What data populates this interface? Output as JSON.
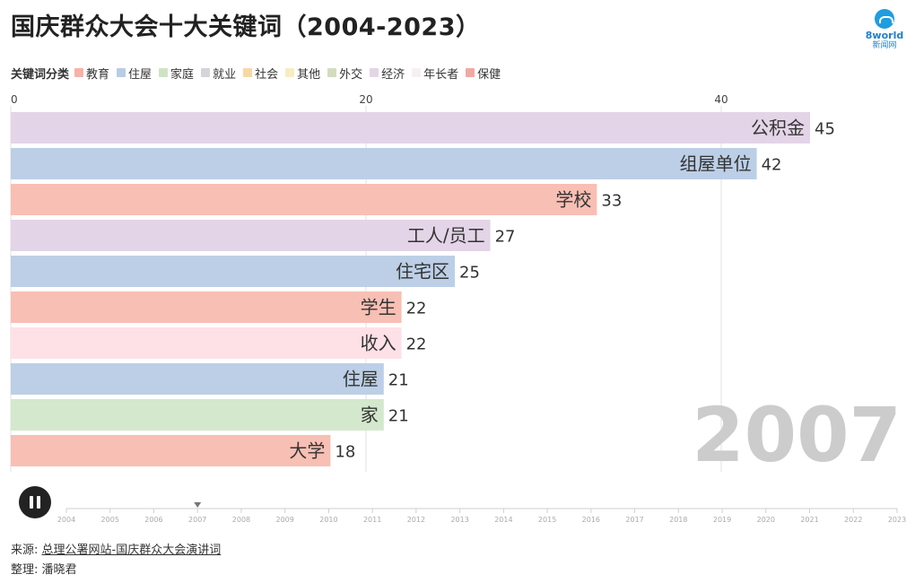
{
  "title": "国庆群众大会十大关键词（2004-2023）",
  "logo": {
    "brand": "8world",
    "subbrand": "新闻网"
  },
  "legend": {
    "title": "关键词分类",
    "items": [
      {
        "label": "教育",
        "color": "#f7b1a8"
      },
      {
        "label": "住屋",
        "color": "#b8cce4"
      },
      {
        "label": "家庭",
        "color": "#cfe3c4"
      },
      {
        "label": "就业",
        "color": "#d5d5d9"
      },
      {
        "label": "社会",
        "color": "#f8d7a6"
      },
      {
        "label": "其他",
        "color": "#f7ecc2"
      },
      {
        "label": "外交",
        "color": "#d4dcc0"
      },
      {
        "label": "经济",
        "color": "#e5d4e6"
      },
      {
        "label": "年长者",
        "color": "#f6f0f2"
      },
      {
        "label": "保健",
        "color": "#f1a9a4"
      }
    ]
  },
  "chart_data": {
    "type": "bar",
    "orientation": "horizontal",
    "year": "2007",
    "xlim": [
      0,
      45
    ],
    "ticks": [
      0,
      20,
      40
    ],
    "categories": [
      "公积金",
      "组屋单位",
      "学校",
      "工人/员工",
      "住宅区",
      "学生",
      "收入",
      "住屋",
      "家",
      "大学"
    ],
    "values": [
      45,
      42,
      33,
      27,
      25,
      22,
      22,
      21,
      21,
      18
    ],
    "category_groups": [
      "经济",
      "住屋",
      "教育",
      "经济",
      "住屋",
      "教育",
      "年长者",
      "住屋",
      "家庭",
      "教育"
    ],
    "colors": [
      "#e4d4e7",
      "#bccfe6",
      "#f8bfb4",
      "#e4d4e7",
      "#bccfe6",
      "#f8bfb4",
      "#fde1e6",
      "#bccfe6",
      "#d3e8cc",
      "#f8bfb4"
    ]
  },
  "timeline": {
    "years": [
      "2004",
      "2005",
      "2006",
      "2007",
      "2008",
      "2009",
      "2010",
      "2011",
      "2012",
      "2013",
      "2014",
      "2015",
      "2016",
      "2017",
      "2018",
      "2019",
      "2020",
      "2021",
      "2022",
      "2023"
    ],
    "current": "2007"
  },
  "footer": {
    "source_prefix": "来源: ",
    "source_link": "总理公署网站-国庆群众大会演讲词",
    "editor": "整理: 潘晓君"
  }
}
